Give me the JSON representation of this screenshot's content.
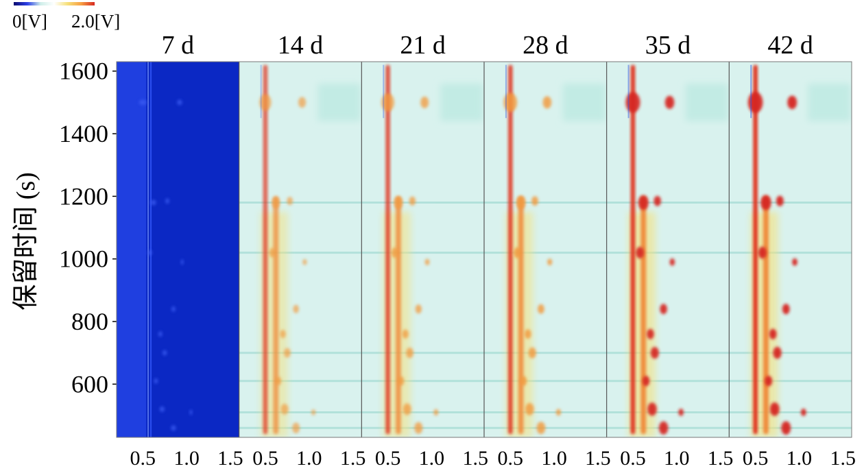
{
  "chart_data": {
    "type": "heatmap",
    "title": "",
    "colorbar": {
      "min_label": "0[V]",
      "max_label": "2.0[V]",
      "colors": [
        "#0a0a6e",
        "#2b3fe6",
        "#cfeee9",
        "#ffffff",
        "#f6e07a",
        "#f7a044",
        "#d62820"
      ]
    },
    "ylabel": "保留时间 (s)",
    "ylim": [
      430,
      1630
    ],
    "yticks": [
      {
        "value": 1600,
        "label": "1600"
      },
      {
        "value": 1400,
        "label": "1400"
      },
      {
        "value": 1200,
        "label": "1200"
      },
      {
        "value": 1000,
        "label": "1000"
      },
      {
        "value": 800,
        "label": "800"
      },
      {
        "value": 600,
        "label": "600"
      }
    ],
    "xlim": [
      0.2,
      1.6
    ],
    "xticks": [
      {
        "value": 0.5,
        "label": "0.5"
      },
      {
        "value": 1.0,
        "label": "1.0"
      },
      {
        "value": 1.5,
        "label": "1.5"
      }
    ],
    "panels": [
      {
        "label": "7 d",
        "style": "low"
      },
      {
        "label": "14 d",
        "intensity": 0.55
      },
      {
        "label": "21 d",
        "intensity": 0.7
      },
      {
        "label": "28 d",
        "intensity": 0.8
      },
      {
        "label": "35 d",
        "intensity": 0.95
      },
      {
        "label": "42 d",
        "intensity": 1.0
      }
    ],
    "features": {
      "vertical_bands": [
        {
          "x": 0.5,
          "y_from": 440,
          "y_to": 1620,
          "width": 0.05
        },
        {
          "x": 0.62,
          "y_from": 440,
          "y_to": 1200,
          "width": 0.06
        }
      ],
      "spots": [
        {
          "x": 0.5,
          "y": 1500,
          "size": 1.4
        },
        {
          "x": 0.62,
          "y": 1180,
          "size": 1.0
        },
        {
          "x": 0.78,
          "y": 1185,
          "size": 0.7
        },
        {
          "x": 0.58,
          "y": 1020,
          "size": 0.8
        },
        {
          "x": 0.95,
          "y": 990,
          "size": 0.5
        },
        {
          "x": 0.85,
          "y": 840,
          "size": 0.7
        },
        {
          "x": 0.7,
          "y": 760,
          "size": 0.7
        },
        {
          "x": 0.75,
          "y": 700,
          "size": 0.8
        },
        {
          "x": 0.65,
          "y": 610,
          "size": 0.7
        },
        {
          "x": 0.72,
          "y": 520,
          "size": 0.9
        },
        {
          "x": 0.85,
          "y": 460,
          "size": 0.9
        },
        {
          "x": 0.92,
          "y": 1500,
          "size": 0.9
        },
        {
          "x": 1.05,
          "y": 510,
          "size": 0.5
        }
      ],
      "horizontal_lines": [
        1180,
        1020,
        700,
        610,
        510,
        460
      ]
    }
  }
}
